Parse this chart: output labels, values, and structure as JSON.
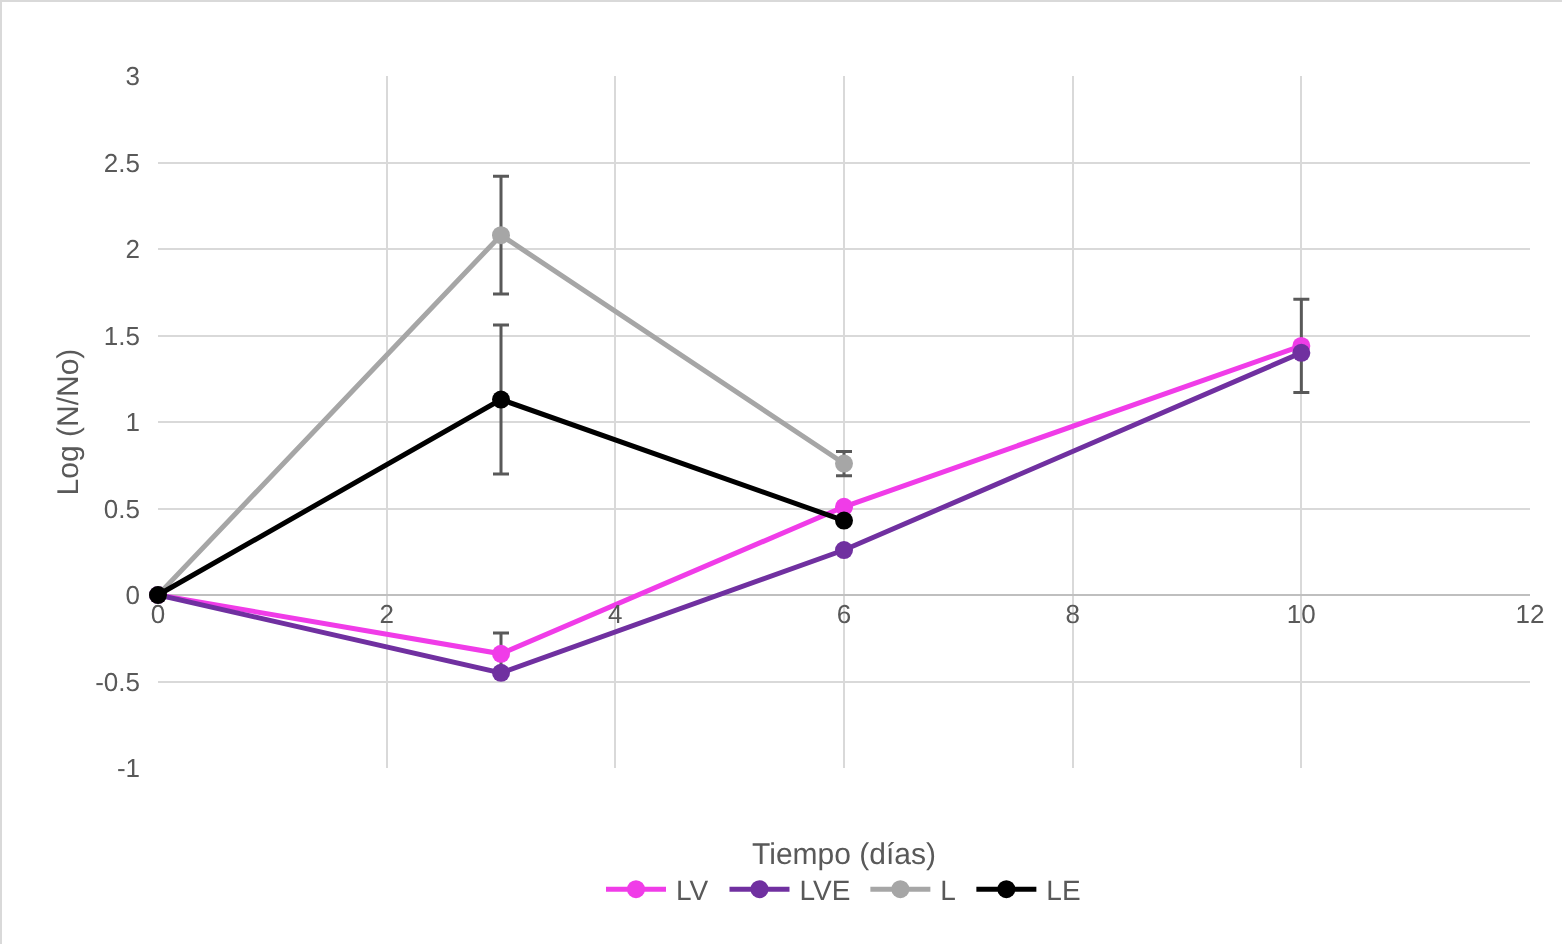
{
  "chart_data": {
    "type": "line",
    "xlabel": "Tiempo (días)",
    "ylabel": "Log (N/No)",
    "xlim": [
      0,
      12
    ],
    "xticks": [
      0,
      2,
      4,
      6,
      8,
      10,
      12
    ],
    "ylim": [
      -1,
      3
    ],
    "yticks": [
      -1,
      -0.5,
      0,
      0.5,
      1,
      1.5,
      2,
      2.5,
      3
    ],
    "grid": true,
    "legend": "bottom",
    "marker": "circle",
    "series": [
      {
        "name": "LV",
        "color": "#f03ce8",
        "x": [
          0,
          3,
          6,
          10
        ],
        "values": [
          0,
          -0.34,
          0.51,
          1.44
        ],
        "errors": [
          null,
          0.12,
          null,
          0.27
        ]
      },
      {
        "name": "LVE",
        "color": "#7030a0",
        "x": [
          0,
          3,
          6,
          10
        ],
        "values": [
          0,
          -0.45,
          0.26,
          1.4
        ]
      },
      {
        "name": "L",
        "color": "#a6a6a6",
        "x": [
          0,
          3,
          6
        ],
        "values": [
          0,
          2.08,
          0.76
        ],
        "errors": [
          null,
          0.34,
          0.07
        ]
      },
      {
        "name": "LE",
        "color": "#000000",
        "x": [
          0,
          3,
          6
        ],
        "values": [
          0,
          1.13,
          0.43
        ],
        "errors": [
          null,
          0.43,
          null
        ]
      }
    ]
  }
}
